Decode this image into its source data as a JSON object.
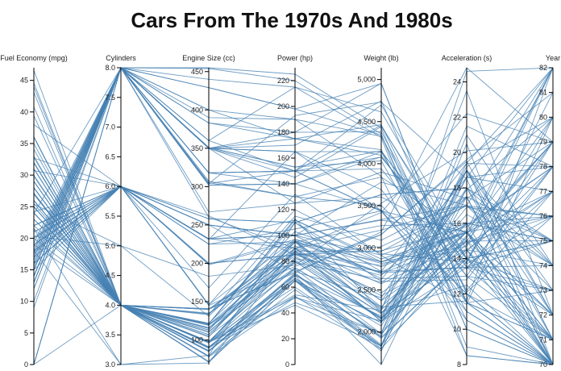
{
  "chart_data": {
    "type": "parallel_coordinates",
    "title": "Cars From The 1970s And 1980s",
    "line_color": "#4682b4",
    "axes": [
      {
        "key": "mpg",
        "label": "Fuel Economy (mpg)",
        "range": [
          0,
          47
        ],
        "ticks": [
          0,
          5,
          10,
          15,
          20,
          25,
          30,
          35,
          40,
          45
        ]
      },
      {
        "key": "cyl",
        "label": "Cylinders",
        "range": [
          3,
          8
        ],
        "ticks": [
          3.0,
          3.5,
          4.0,
          4.5,
          5.0,
          5.5,
          6.0,
          6.5,
          7.0,
          7.5,
          8.0
        ],
        "tick_decimals": 1
      },
      {
        "key": "disp",
        "label": "Engine Size (cc)",
        "range": [
          68,
          455
        ],
        "ticks": [
          100,
          150,
          200,
          250,
          300,
          350,
          400,
          450
        ]
      },
      {
        "key": "hp",
        "label": "Power (hp)",
        "range": [
          0,
          230
        ],
        "ticks": [
          0,
          20,
          40,
          60,
          80,
          100,
          120,
          140,
          160,
          180,
          200,
          220
        ]
      },
      {
        "key": "weight",
        "label": "Weight (lb)",
        "range": [
          1613,
          5140
        ],
        "ticks": [
          2000,
          2500,
          3000,
          3500,
          4000,
          4500,
          5000
        ],
        "thousands": true
      },
      {
        "key": "accel",
        "label": "Acceleration (s)",
        "range": [
          8,
          24.8
        ],
        "ticks": [
          8,
          10,
          12,
          14,
          16,
          18,
          20,
          22,
          24
        ]
      },
      {
        "key": "year",
        "label": "Year",
        "range": [
          70,
          82
        ],
        "ticks": [
          70,
          71,
          72,
          73,
          74,
          75,
          76,
          77,
          78,
          79,
          80,
          81,
          82
        ]
      }
    ],
    "rows": [
      [
        18,
        8,
        307,
        130,
        3504,
        12.0,
        70
      ],
      [
        15,
        8,
        350,
        165,
        3693,
        11.5,
        70
      ],
      [
        18,
        8,
        318,
        150,
        3436,
        11.0,
        70
      ],
      [
        16,
        8,
        304,
        150,
        3433,
        12.0,
        70
      ],
      [
        17,
        8,
        302,
        140,
        3449,
        10.5,
        70
      ],
      [
        15,
        8,
        429,
        198,
        4341,
        10.0,
        70
      ],
      [
        14,
        8,
        454,
        220,
        4354,
        9.0,
        70
      ],
      [
        14,
        8,
        440,
        215,
        4312,
        8.5,
        70
      ],
      [
        14,
        8,
        455,
        225,
        4425,
        10.0,
        70
      ],
      [
        15,
        8,
        390,
        190,
        3850,
        8.5,
        70
      ],
      [
        0,
        4,
        133,
        115,
        3090,
        17.5,
        70
      ],
      [
        0,
        8,
        350,
        165,
        4142,
        11.5,
        70
      ],
      [
        0,
        8,
        351,
        153,
        4034,
        11.0,
        70
      ],
      [
        0,
        8,
        383,
        175,
        4166,
        10.5,
        70
      ],
      [
        24,
        4,
        113,
        95,
        2372,
        15.0,
        70
      ],
      [
        22,
        6,
        198,
        95,
        2833,
        15.5,
        70
      ],
      [
        18,
        6,
        199,
        97,
        2774,
        15.5,
        70
      ],
      [
        21,
        6,
        200,
        85,
        2587,
        16.0,
        70
      ],
      [
        27,
        4,
        97,
        88,
        2130,
        14.5,
        70
      ],
      [
        26,
        4,
        97,
        46,
        1835,
        20.5,
        70
      ],
      [
        25,
        4,
        110,
        87,
        2672,
        17.5,
        70
      ],
      [
        24,
        4,
        107,
        90,
        2430,
        14.5,
        70
      ],
      [
        25,
        4,
        104,
        95,
        2375,
        17.5,
        70
      ],
      [
        26,
        4,
        121,
        113,
        2234,
        12.5,
        70
      ],
      [
        10,
        8,
        360,
        215,
        4615,
        14.0,
        70
      ],
      [
        9,
        8,
        304,
        193,
        4732,
        18.5,
        70
      ],
      [
        27,
        4,
        97,
        88,
        2130,
        14.5,
        71
      ],
      [
        28,
        4,
        140,
        90,
        2264,
        15.5,
        71
      ],
      [
        25,
        4,
        113,
        95,
        2228,
        14.0,
        71
      ],
      [
        19,
        6,
        232,
        100,
        2634,
        13.0,
        71
      ],
      [
        16,
        6,
        225,
        105,
        3439,
        15.5,
        71
      ],
      [
        17,
        6,
        250,
        100,
        3329,
        15.5,
        71
      ],
      [
        14,
        8,
        400,
        175,
        4464,
        11.5,
        71
      ],
      [
        14,
        8,
        351,
        153,
        4154,
        13.5,
        71
      ],
      [
        12,
        8,
        383,
        180,
        4955,
        11.5,
        71
      ],
      [
        13,
        8,
        350,
        170,
        4746,
        12.0,
        71
      ],
      [
        31,
        4,
        71,
        65,
        1773,
        19.0,
        71
      ],
      [
        35,
        4,
        72,
        69,
        1613,
        18.0,
        71
      ],
      [
        22,
        4,
        140,
        72,
        2408,
        19.0,
        71
      ],
      [
        21,
        6,
        250,
        72,
        3158,
        19.5,
        72
      ],
      [
        19,
        4,
        121,
        112,
        2868,
        15.5,
        72
      ],
      [
        13,
        8,
        318,
        150,
        4077,
        14.0,
        72
      ],
      [
        28,
        4,
        98,
        80,
        2164,
        15.0,
        72
      ],
      [
        23,
        4,
        97,
        54,
        2254,
        23.5,
        72
      ],
      [
        27,
        4,
        97,
        60,
        1834,
        19.0,
        72
      ],
      [
        24,
        4,
        116,
        75,
        2158,
        15.5,
        72
      ],
      [
        18,
        3,
        70,
        90,
        2124,
        13.5,
        73
      ],
      [
        16,
        8,
        302,
        140,
        4141,
        14.0,
        73
      ],
      [
        13,
        8,
        350,
        175,
        4100,
        13.0,
        73
      ],
      [
        12,
        8,
        429,
        198,
        4952,
        11.5,
        73
      ],
      [
        15,
        6,
        250,
        100,
        3336,
        17.0,
        73
      ],
      [
        20,
        4,
        97,
        88,
        2279,
        19.0,
        73
      ],
      [
        26,
        4,
        96,
        69,
        2189,
        18.0,
        72
      ],
      [
        29,
        4,
        98,
        83,
        2219,
        16.5,
        74
      ],
      [
        31,
        4,
        79,
        67,
        1950,
        19.0,
        74
      ],
      [
        32,
        4,
        71,
        65,
        1836,
        21.0,
        74
      ],
      [
        16,
        6,
        250,
        100,
        3781,
        17.0,
        74
      ],
      [
        13,
        8,
        350,
        150,
        4699,
        14.5,
        74
      ],
      [
        14,
        8,
        318,
        150,
        4457,
        13.5,
        74
      ],
      [
        24,
        4,
        134,
        96,
        2702,
        13.5,
        75
      ],
      [
        20,
        6,
        232,
        100,
        2914,
        16.0,
        75
      ],
      [
        18,
        6,
        258,
        110,
        3632,
        18.0,
        75
      ],
      [
        15,
        8,
        350,
        145,
        4440,
        14.0,
        75
      ],
      [
        19,
        6,
        225,
        95,
        3264,
        16.0,
        75
      ],
      [
        29,
        4,
        90,
        70,
        1937,
        14.0,
        75
      ],
      [
        25,
        4,
        115,
        95,
        2694,
        15.0,
        75
      ],
      [
        23,
        4,
        120,
        88,
        2957,
        17.0,
        75
      ],
      [
        33,
        4,
        91,
        53,
        1795,
        17.5,
        75
      ],
      [
        28,
        4,
        107,
        86,
        2464,
        15.5,
        76
      ],
      [
        26,
        4,
        116,
        81,
        2220,
        16.9,
        76
      ],
      [
        24,
        4,
        140,
        92,
        2572,
        14.9,
        76
      ],
      [
        19,
        6,
        232,
        90,
        3211,
        17.0,
        76
      ],
      [
        16.5,
        8,
        350,
        180,
        4380,
        12.1,
        76
      ],
      [
        17.5,
        8,
        318,
        140,
        4080,
        13.7,
        76
      ],
      [
        29,
        4,
        97,
        75,
        2171,
        16.0,
        76
      ],
      [
        30,
        4,
        111,
        80,
        2155,
        14.8,
        77
      ],
      [
        22,
        6,
        146,
        97,
        2815,
        14.5,
        77
      ],
      [
        21.5,
        3,
        80,
        110,
        2720,
        13.5,
        77
      ],
      [
        15.5,
        8,
        400,
        190,
        4325,
        12.2,
        77
      ],
      [
        36,
        4,
        79,
        58,
        1825,
        18.6,
        77
      ],
      [
        25.5,
        4,
        122,
        96,
        2300,
        15.5,
        77
      ],
      [
        20.2,
        6,
        200,
        85,
        2965,
        15.8,
        78
      ],
      [
        17.7,
        6,
        231,
        165,
        3445,
        13.4,
        78
      ],
      [
        21.5,
        4,
        121,
        110,
        2600,
        12.8,
        78
      ],
      [
        43.1,
        4,
        90,
        48,
        1985,
        21.5,
        78
      ],
      [
        36.1,
        4,
        98,
        66,
        1800,
        14.4,
        78
      ],
      [
        32.8,
        4,
        78,
        52,
        1985,
        19.4,
        78
      ],
      [
        39.4,
        4,
        85,
        70,
        2070,
        18.6,
        78
      ],
      [
        19.2,
        8,
        267,
        125,
        3605,
        15.0,
        79
      ],
      [
        18.5,
        8,
        360,
        150,
        3940,
        13.0,
        79
      ],
      [
        31.9,
        4,
        89,
        71,
        1925,
        14.0,
        79
      ],
      [
        34.1,
        4,
        86,
        65,
        1975,
        15.2,
        79
      ],
      [
        27.2,
        4,
        141,
        71,
        3190,
        24.8,
        79
      ],
      [
        23.9,
        8,
        260,
        90,
        3420,
        22.2,
        79
      ],
      [
        20.3,
        5,
        131,
        103,
        2830,
        15.9,
        78
      ],
      [
        25.4,
        5,
        183,
        77,
        3530,
        20.1,
        79
      ],
      [
        44.6,
        4,
        91,
        67,
        1850,
        13.8,
        80
      ],
      [
        46.6,
        4,
        86,
        65,
        2110,
        17.9,
        80
      ],
      [
        40.8,
        4,
        85,
        65,
        2110,
        19.2,
        80
      ],
      [
        32.7,
        6,
        168,
        132,
        2910,
        11.4,
        80
      ],
      [
        29.8,
        4,
        134,
        90,
        2711,
        15.5,
        80
      ],
      [
        36,
        4,
        105,
        74,
        1980,
        15.3,
        82
      ],
      [
        24.2,
        6,
        146,
        120,
        2930,
        13.8,
        81
      ],
      [
        30.7,
        6,
        145,
        76,
        3160,
        19.6,
        81
      ],
      [
        38,
        6,
        262,
        85,
        3015,
        17.0,
        82
      ],
      [
        31,
        4,
        119,
        82,
        2720,
        19.4,
        82
      ],
      [
        44,
        4,
        97,
        52,
        2130,
        24.6,
        82
      ],
      [
        32,
        4,
        135,
        84,
        2295,
        11.6,
        82
      ],
      [
        28,
        4,
        120,
        79,
        2625,
        18.6,
        82
      ],
      [
        27,
        4,
        140,
        86,
        2790,
        15.6,
        82
      ],
      [
        22,
        6,
        232,
        112,
        2835,
        14.7,
        82
      ],
      [
        17,
        8,
        305,
        130,
        3840,
        15.4,
        79
      ],
      [
        15,
        8,
        350,
        125,
        3900,
        17.4,
        79
      ],
      [
        16,
        6,
        258,
        110,
        3632,
        18.0,
        74
      ]
    ]
  }
}
